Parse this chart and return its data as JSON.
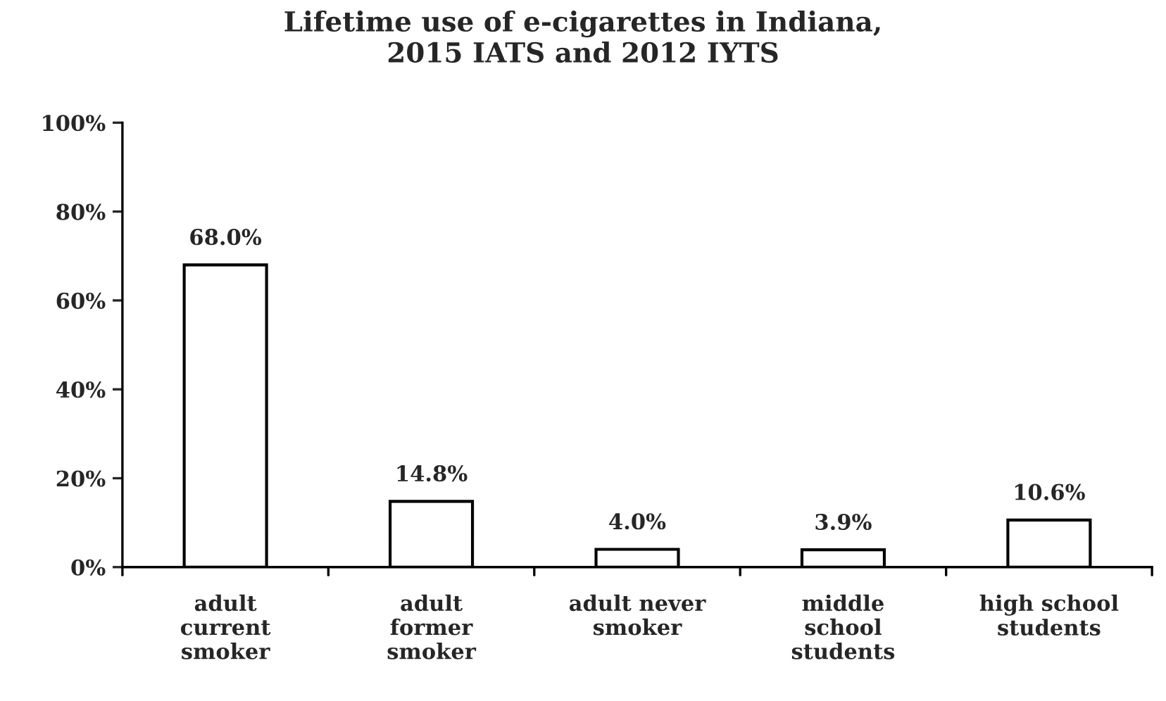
{
  "chart_data": {
    "type": "bar",
    "title": "Lifetime use of e-cigarettes in Indiana,\n2015 IATS and 2012 IYTS",
    "categories": [
      "adult\ncurrent\nsmoker",
      "adult\nformer\nsmoker",
      "adult never\nsmoker",
      "middle\nschool\nstudents",
      "high school\nstudents"
    ],
    "values": [
      68.0,
      14.8,
      4.0,
      3.9,
      10.6
    ],
    "value_labels": [
      "68.0%",
      "14.8%",
      "4.0%",
      "3.9%",
      "10.6%"
    ],
    "color": "#ffffff",
    "ylim": [
      0,
      100
    ],
    "yticks": [
      {
        "value": 0,
        "label": "0%"
      },
      {
        "value": 20,
        "label": "20%"
      },
      {
        "value": 40,
        "label": "40%"
      },
      {
        "value": 60,
        "label": "60%"
      },
      {
        "value": 80,
        "label": "80%"
      },
      {
        "value": 100,
        "label": "100%"
      }
    ],
    "grid": false,
    "legend": false
  }
}
